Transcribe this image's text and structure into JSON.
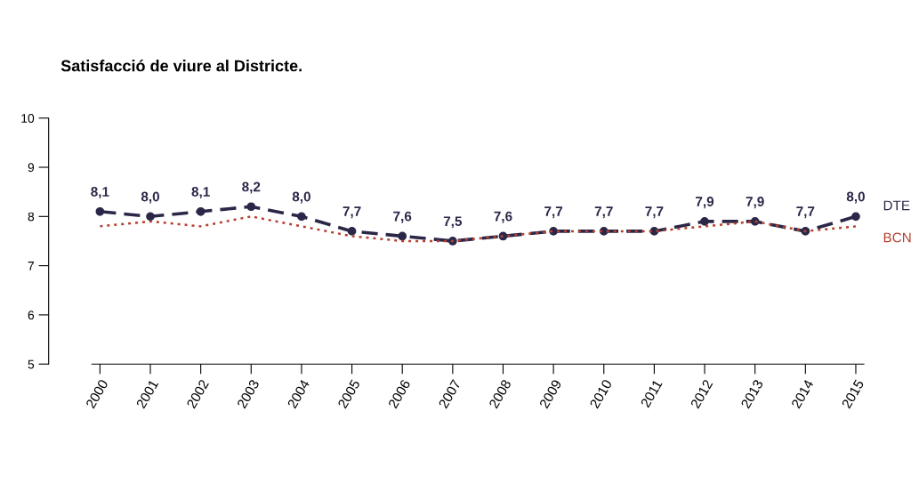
{
  "chart_data": {
    "type": "line",
    "title": "Satisfacció de viure al Districte.",
    "categories": [
      "2000",
      "2001",
      "2002",
      "2003",
      "2004",
      "2005",
      "2006",
      "2007",
      "2008",
      "2009",
      "2010",
      "2011",
      "2012",
      "2013",
      "2014",
      "2015"
    ],
    "series": [
      {
        "name": "DTE",
        "color": "#2b2748",
        "line_style": "dashed",
        "marker": "circle",
        "values": [
          8.1,
          8.0,
          8.1,
          8.2,
          8.0,
          7.7,
          7.6,
          7.5,
          7.6,
          7.7,
          7.7,
          7.7,
          7.9,
          7.9,
          7.7,
          8.0
        ],
        "value_labels": [
          "8,1",
          "8,0",
          "8,1",
          "8,2",
          "8,0",
          "7,7",
          "7,6",
          "7,5",
          "7,6",
          "7,7",
          "7,7",
          "7,7",
          "7,9",
          "7,9",
          "7,7",
          "8,0"
        ]
      },
      {
        "name": "BCN",
        "color": "#b5402f",
        "line_style": "dotted",
        "marker": "none",
        "values": [
          7.8,
          7.9,
          7.8,
          8.0,
          7.8,
          7.6,
          7.5,
          7.5,
          7.6,
          7.7,
          7.7,
          7.7,
          7.8,
          7.9,
          7.7,
          7.8
        ]
      }
    ],
    "ylim": [
      5,
      10
    ],
    "yticks": [
      5,
      6,
      7,
      8,
      9,
      10
    ],
    "grid": false,
    "legend": false
  }
}
